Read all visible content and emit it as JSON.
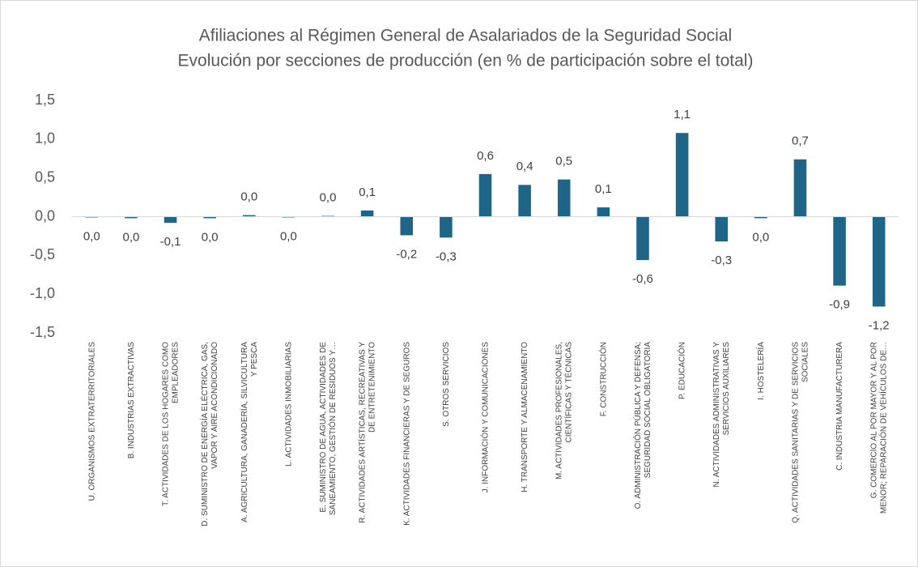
{
  "chart_data": {
    "type": "bar",
    "title": "Afiliaciones al Régimen General de Asalariados de la Seguridad Social",
    "subtitle": "Evolución por secciones de producción (en % de participación sobre el total)",
    "categories": [
      "U. ORGANISMOS EXTRATERRITORIALES",
      "B. INDUSTRIAS EXTRACTIVAS",
      "T. ACTIVIDADES DE LOS HOGARES COMO\nEMPLEADORES",
      "D. SUMINISTRO DE ENERGÍA ELÉCTRICA, GAS,\nVAPOR Y AIRE ACONDICIONADO",
      "A. AGRICULTURA, GANADERÍA, SILVICULTURA\nY PESCA",
      "L. ACTIVIDADES INMOBILIARIAS",
      "E. SUMINISTRO DE AGUA, ACTIVIDADES DE\nSANEAMIENTO, GESTIÓN DE RESIDUOS Y…",
      "R. ACTIVIDADES ARTÍSTICAS, RECREATIVAS Y\nDE ENTRETENIMIENTO",
      "K. ACTIVIDADES FINANCIERAS Y DE SEGUROS",
      "S. OTROS SERVICIOS",
      "J. INFORMACIÓN Y COMUNICACIONES",
      "H. TRANSPORTE Y ALMACENAMIENTO",
      "M. ACTIVIDADES PROFESIONALES,\nCIENTÍFICAS Y TÉCNICAS",
      "F. CONSTRUCCIÓN",
      "O. ADMINISTRACIÓN PÚBLICA Y DEFENSA;\nSEGURIDAD SOCIAL OBLIGATORIA",
      "P. EDUCACIÓN",
      "N. ACTIVIDADES ADMINISTRATIVAS Y\nSERVICIOS AUXILIARES",
      "I. HOSTELERÍA",
      "Q. ACTIVIDADES SANITARIAS Y DE SERVICIOS\nSOCIALES",
      "C. INDUSTRIA MANUFACTURERA",
      "G. COMERCIO AL POR MAYOR Y AL POR\nMENOR; REPARACIÓN DE VEHÍCULOS DE…"
    ],
    "values": [
      -0.01,
      -0.02,
      -0.08,
      -0.02,
      0.02,
      -0.01,
      0.01,
      0.08,
      -0.24,
      -0.27,
      0.55,
      0.41,
      0.48,
      0.12,
      -0.56,
      1.08,
      -0.32,
      -0.02,
      0.74,
      -0.89,
      -1.16
    ],
    "value_labels": [
      "0,0",
      "0,0",
      "-0,1",
      "0,0",
      "0,0",
      "0,0",
      "0,0",
      "0,1",
      "-0,2",
      "-0,3",
      "0,6",
      "0,4",
      "0,5",
      "0,1",
      "-0,6",
      "1,1",
      "-0,3",
      "0,0",
      "0,7",
      "-0,9",
      "-1,2"
    ],
    "color": "#1f6587",
    "ylim": [
      -1.5,
      1.5
    ],
    "yticks": [
      {
        "value": -1.5,
        "label": "-1,5"
      },
      {
        "value": -1.0,
        "label": "-1,0"
      },
      {
        "value": -0.5,
        "label": "-0,5"
      },
      {
        "value": 0,
        "label": "0,0"
      },
      {
        "value": 0.5,
        "label": "0,5"
      },
      {
        "value": 1.0,
        "label": "1,0"
      },
      {
        "value": 1.5,
        "label": "1,5"
      }
    ],
    "grid": false
  }
}
